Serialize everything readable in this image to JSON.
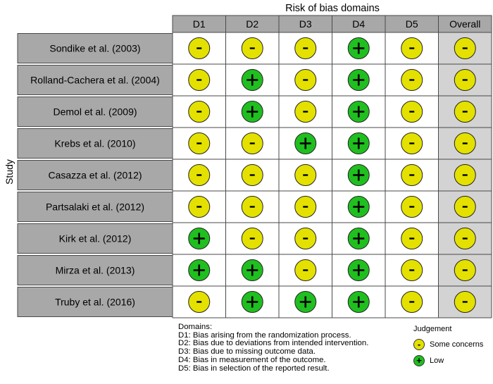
{
  "chart_data": {
    "type": "table",
    "title": "Risk of bias domains",
    "ylabel": "Study",
    "columns": [
      "D1",
      "D2",
      "D3",
      "D4",
      "D5",
      "Overall"
    ],
    "studies": [
      "Sondike et al. (2003)",
      "Rolland-Cachera et al. (2004)",
      "Demol et al. (2009)",
      "Krebs et al. (2010)",
      "Casazza et al. (2012)",
      "Partsalaki et al. (2012)",
      "Kirk et al. (2012)",
      "Mirza et al. (2013)",
      "Truby et al. (2016)"
    ],
    "judgements": [
      [
        "some",
        "some",
        "some",
        "low",
        "some",
        "some"
      ],
      [
        "some",
        "low",
        "some",
        "low",
        "some",
        "some"
      ],
      [
        "some",
        "low",
        "some",
        "low",
        "some",
        "some"
      ],
      [
        "some",
        "some",
        "low",
        "low",
        "some",
        "some"
      ],
      [
        "some",
        "some",
        "some",
        "low",
        "some",
        "some"
      ],
      [
        "some",
        "some",
        "some",
        "low",
        "some",
        "some"
      ],
      [
        "low",
        "some",
        "some",
        "low",
        "some",
        "some"
      ],
      [
        "low",
        "low",
        "some",
        "low",
        "some",
        "some"
      ],
      [
        "some",
        "low",
        "low",
        "low",
        "some",
        "some"
      ]
    ],
    "symbols": {
      "some": "-",
      "low": "+"
    },
    "legend": {
      "title": "Judgement",
      "items": [
        {
          "key": "some",
          "label": "Some concerns"
        },
        {
          "key": "low",
          "label": "Low"
        }
      ]
    }
  },
  "domains": {
    "title": "Domains:",
    "items": [
      "D1: Bias arising from the randomization process.",
      "D2: Bias due to deviations from intended intervention.",
      "D3: Bias due to missing outcome data.",
      "D4: Bias in measurement of the outcome.",
      "D5: Bias in selection of the reported result."
    ]
  },
  "colors": {
    "some": "#e4e100",
    "low": "#1fbf1f",
    "header_fill": "#a8a8a8",
    "study_fill": "#a8a8a8",
    "overall_fill": "#d3d3d3",
    "grid": "#4a4a4a"
  }
}
